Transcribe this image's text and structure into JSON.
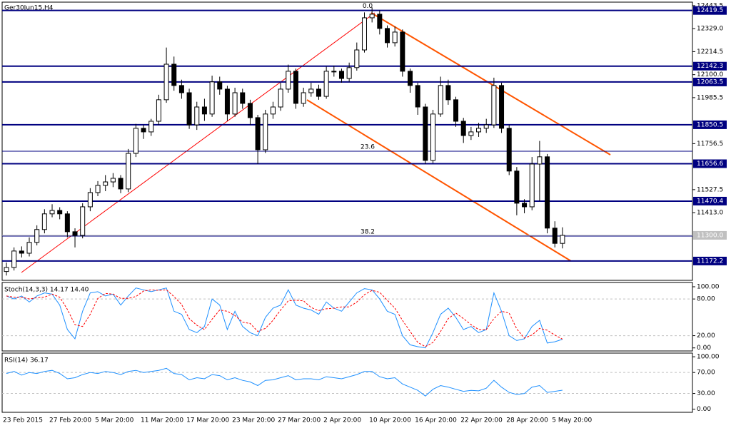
{
  "chart_data": [
    {
      "type": "candlestick",
      "title": "Ger30Jun15,H4",
      "categories": [
        "23 Feb 2015",
        null,
        null,
        null,
        null,
        null,
        "27 Feb 20:00",
        null,
        null,
        null,
        null,
        null,
        "5 Mar 20:00",
        null,
        null,
        null,
        null,
        null,
        "11 Mar 20:00",
        null,
        null,
        null,
        null,
        null,
        "17 Mar 20:00",
        null,
        null,
        null,
        null,
        null,
        "23 Mar 20:00",
        null,
        null,
        null,
        null,
        null,
        "27 Mar 20:00",
        null,
        null,
        null,
        null,
        null,
        "2 Apr 20:00",
        null,
        null,
        null,
        null,
        null,
        "10 Apr 20:00",
        null,
        null,
        null,
        null,
        null,
        "16 Apr 20:00",
        null,
        null,
        null,
        null,
        null,
        "22 Apr 20:00",
        null,
        null,
        null,
        null,
        null,
        "28 Apr 20:00",
        null,
        null,
        null,
        null,
        null,
        "5 May 20:00",
        null
      ],
      "open": [
        11120,
        11140,
        11222,
        11211,
        11265,
        11329,
        11407,
        11424,
        11407,
        11318,
        11300,
        11442,
        11513,
        11549,
        11566,
        11584,
        11531,
        11708,
        11833,
        11815,
        11868,
        11975,
        12152,
        12046,
        12010,
        11850,
        11939,
        11904,
        12064,
        12028,
        11904,
        12010,
        11957,
        11886,
        11726,
        11904,
        11939,
        12028,
        12117,
        11957,
        12010,
        12028,
        11992,
        12117,
        12117,
        12081,
        12135,
        12223,
        12383,
        12401,
        12330,
        12259,
        12312,
        12117,
        12046,
        11939,
        11673,
        11904,
        12046,
        11975,
        11868,
        11797,
        11815,
        11833,
        11850,
        12046,
        11833,
        11620,
        11460,
        11442,
        11655,
        11691,
        11336,
        11260
      ],
      "high": [
        11165,
        11240,
        11245,
        11290,
        11350,
        11430,
        11455,
        11440,
        11420,
        11335,
        11460,
        11535,
        11570,
        11600,
        11610,
        11600,
        11730,
        11855,
        11850,
        11880,
        12000,
        12235,
        12190,
        12075,
        12030,
        11965,
        11980,
        12095,
        12090,
        12045,
        12035,
        12030,
        11975,
        11900,
        11925,
        11965,
        12060,
        12150,
        12130,
        12035,
        12060,
        12050,
        12140,
        12145,
        12130,
        12160,
        12260,
        12410,
        12435,
        12420,
        12345,
        12340,
        12325,
        12130,
        12060,
        11955,
        11925,
        12090,
        12075,
        11990,
        11885,
        11840,
        11860,
        11880,
        12085,
        12060,
        11850,
        11640,
        11480,
        11690,
        11770,
        11705,
        11370,
        11340
      ],
      "low": [
        11100,
        11125,
        11190,
        11195,
        11250,
        11310,
        11390,
        11380,
        11290,
        11240,
        11285,
        11420,
        11495,
        11520,
        11540,
        11510,
        11515,
        11690,
        11780,
        11795,
        11850,
        11960,
        12020,
        11980,
        11830,
        11825,
        11870,
        11890,
        12000,
        11870,
        11890,
        11930,
        11850,
        11655,
        11710,
        11880,
        11920,
        12010,
        11930,
        11940,
        11990,
        11975,
        11980,
        12090,
        12060,
        12065,
        12120,
        12210,
        12360,
        12300,
        12235,
        12240,
        12090,
        12010,
        11900,
        11655,
        11660,
        11890,
        11950,
        11840,
        11760,
        11775,
        11790,
        11810,
        11835,
        11810,
        11600,
        11400,
        11410,
        11425,
        11470,
        11310,
        11240,
        11235
      ],
      "close": [
        11140,
        11222,
        11211,
        11265,
        11329,
        11407,
        11424,
        11407,
        11318,
        11300,
        11442,
        11513,
        11549,
        11566,
        11584,
        11531,
        11708,
        11833,
        11815,
        11868,
        11975,
        12152,
        12046,
        12010,
        11850,
        11939,
        11904,
        12064,
        12028,
        11904,
        12010,
        11957,
        11886,
        11726,
        11904,
        11939,
        12028,
        12117,
        11957,
        12010,
        12028,
        11992,
        12117,
        12117,
        12081,
        12135,
        12223,
        12383,
        12401,
        12330,
        12259,
        12312,
        12117,
        12046,
        11939,
        11673,
        11904,
        12046,
        11975,
        11868,
        11797,
        11815,
        11833,
        11850,
        12046,
        11833,
        11620,
        11460,
        11442,
        11655,
        11691,
        11336,
        11260,
        11300
      ],
      "ylim": [
        11076,
        12461
      ],
      "yticks": [
        12443.5,
        {
          "value": 12329,
          "label": "12329.0"
        },
        12214.5,
        {
          "value": 12100,
          "label": "12100.0"
        },
        11985.5,
        11756.5,
        11527.5,
        {
          "value": 11413,
          "label": "11413.0"
        }
      ],
      "levels": [
        12419.5,
        12142.3,
        12063.5,
        11850.5,
        11656.6,
        11470.4,
        11172.2
      ],
      "level_color": "#000080",
      "current": {
        "value": 11300,
        "label": "11300.0"
      },
      "fib": [
        {
          "ratio": "0.0",
          "price": 12419.5
        },
        {
          "ratio": "23.6",
          "price": 11719
        },
        {
          "ratio": "38.2",
          "price": 11296
        }
      ]
    },
    {
      "type": "line",
      "title": "Stoch(14,3,3) 14.17 14.40",
      "series": [
        {
          "color": "#1e90ff",
          "values": [
            85,
            80,
            85,
            75,
            85,
            90,
            88,
            70,
            30,
            15,
            60,
            90,
            92,
            85,
            88,
            70,
            85,
            98,
            95,
            92,
            95,
            98,
            60,
            55,
            30,
            25,
            35,
            80,
            70,
            30,
            60,
            35,
            25,
            20,
            50,
            65,
            70,
            95,
            70,
            65,
            62,
            55,
            75,
            65,
            60,
            75,
            90,
            97,
            95,
            80,
            60,
            55,
            20,
            5,
            2,
            0,
            25,
            55,
            65,
            50,
            30,
            35,
            25,
            30,
            90,
            60,
            20,
            12,
            15,
            35,
            45,
            8,
            10,
            14.17
          ]
        },
        {
          "color": "#ff0000",
          "dashed": true,
          "values": [
            85,
            83,
            83,
            80,
            82,
            83,
            88,
            83,
            63,
            38,
            35,
            55,
            81,
            89,
            88,
            81,
            81,
            84,
            93,
            95,
            94,
            95,
            84,
            71,
            48,
            37,
            30,
            47,
            62,
            60,
            53,
            42,
            40,
            27,
            32,
            45,
            62,
            77,
            78,
            77,
            66,
            61,
            64,
            65,
            67,
            67,
            75,
            87,
            94,
            91,
            78,
            65,
            45,
            27,
            9,
            2,
            9,
            27,
            48,
            57,
            48,
            38,
            30,
            30,
            48,
            60,
            57,
            31,
            16,
            21,
            32,
            29,
            21,
            14.4
          ]
        }
      ],
      "ylim": [
        -5,
        107
      ],
      "yticks": [
        {
          "value": 100,
          "label": "100.00"
        },
        {
          "value": 80,
          "label": "80.00"
        },
        {
          "value": 20,
          "label": "20.00"
        },
        {
          "value": 0,
          "label": "0.00"
        }
      ],
      "levels": [
        80,
        20
      ]
    },
    {
      "type": "line",
      "title": "RSI(14) 36.17",
      "series": [
        {
          "color": "#1e90ff",
          "values": [
            68,
            72,
            65,
            70,
            68,
            72,
            74,
            68,
            58,
            60,
            66,
            70,
            68,
            72,
            70,
            66,
            72,
            74,
            70,
            72,
            74,
            78,
            68,
            66,
            56,
            60,
            58,
            66,
            64,
            56,
            60,
            55,
            52,
            45,
            55,
            56,
            60,
            64,
            56,
            58,
            58,
            56,
            62,
            60,
            58,
            62,
            66,
            72,
            72,
            62,
            58,
            60,
            48,
            42,
            36,
            25,
            38,
            45,
            42,
            38,
            34,
            36,
            35,
            40,
            55,
            42,
            32,
            28,
            30,
            42,
            45,
            32,
            34,
            36.17
          ]
        }
      ],
      "ylim": [
        -6,
        107
      ],
      "yticks": [
        {
          "value": 100,
          "label": "100.00"
        },
        {
          "value": 70,
          "label": "70.00"
        },
        {
          "value": 30,
          "label": "30.00"
        },
        {
          "value": 0,
          "label": "0.00"
        }
      ],
      "levels": [
        70,
        30
      ]
    }
  ]
}
